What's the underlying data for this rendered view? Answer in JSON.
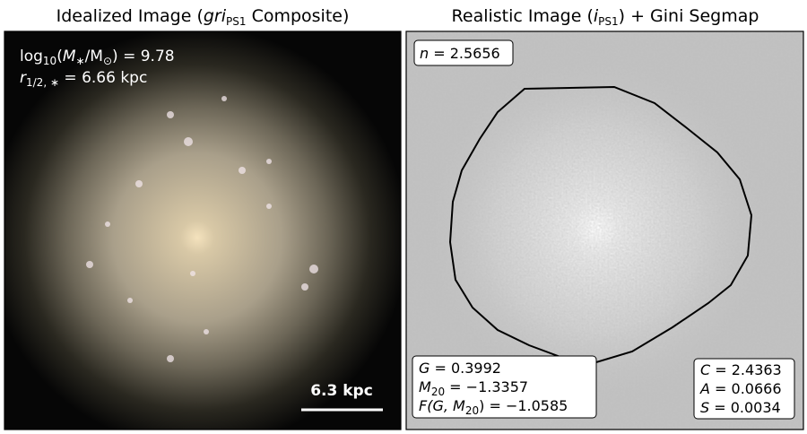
{
  "left_panel": {
    "title_parts": [
      "Idealized Image (",
      "gri",
      "PS1",
      " Composite)"
    ],
    "stellar_mass": {
      "label_parts": [
        "log",
        "10",
        "(",
        "M",
        "∗",
        "/M",
        "⊙",
        ") = "
      ],
      "value": "9.78"
    },
    "half_mass_radius": {
      "label_parts": [
        "r",
        "1/2, ∗",
        " = "
      ],
      "value": "6.66",
      "unit": " kpc"
    },
    "scale_bar": "6.3 kpc"
  },
  "right_panel": {
    "title_parts": [
      "Realistic Image (",
      "i",
      "PS1",
      ") + Gini Segmap"
    ],
    "sersic": {
      "label_parts": [
        "n",
        " = "
      ],
      "value": "2.5656"
    },
    "gini_m20": [
      {
        "label_parts": [
          "G",
          " = "
        ],
        "value": "0.3992"
      },
      {
        "label_parts": [
          "M",
          "20",
          " = "
        ],
        "value": "−1.3357"
      },
      {
        "label_parts": [
          "F(G, M",
          "20",
          ") = "
        ],
        "value": "−1.0585"
      }
    ],
    "cas": [
      {
        "label_parts": [
          "C",
          " = "
        ],
        "value": "2.4363"
      },
      {
        "label_parts": [
          "A",
          " = "
        ],
        "value": "0.0666"
      },
      {
        "label_parts": [
          "S",
          " = "
        ],
        "value": "0.0034"
      }
    ]
  }
}
